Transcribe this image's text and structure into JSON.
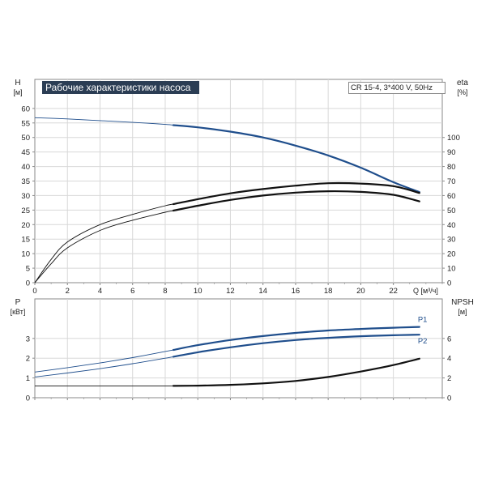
{
  "title": "Рабочие характеристики насоса",
  "model": "CR 15-4, 3*400 V, 50Hz",
  "colors": {
    "blue": "#1f4e8c",
    "black": "#111111",
    "axis": "#8a8a8a",
    "grid": "#d8d8d8",
    "title_bg": "#2b3d54"
  },
  "chart_data": [
    {
      "type": "line",
      "name": "head-efficiency",
      "x_unit_label": "Q [м³/ч]",
      "y_left_label": "H",
      "y_left_unit": "[м]",
      "y_right_label": "eta",
      "y_right_unit": "[%]",
      "xlim": [
        0,
        25
      ],
      "x_ticks": [
        0,
        2,
        4,
        6,
        8,
        10,
        12,
        14,
        16,
        18,
        20,
        22
      ],
      "y_left_lim": [
        0,
        70
      ],
      "y_left_ticks": [
        0,
        5,
        10,
        15,
        20,
        25,
        30,
        35,
        40,
        45,
        50,
        55,
        60
      ],
      "y_right_lim": [
        0,
        140
      ],
      "y_right_ticks": [
        0,
        10,
        20,
        30,
        40,
        50,
        60,
        70,
        80,
        90,
        100
      ],
      "grid": true,
      "series": [
        {
          "key": "H",
          "axis": "left",
          "color": "blue",
          "operating_from": 8.5,
          "x": [
            0,
            2,
            4,
            6,
            8,
            10,
            12,
            14,
            16,
            18,
            20,
            22,
            23.6
          ],
          "y": [
            56.8,
            56.4,
            55.8,
            55.2,
            54.5,
            53.5,
            52.0,
            50.0,
            47.2,
            43.8,
            39.6,
            34.6,
            31.2
          ]
        },
        {
          "key": "eta1",
          "axis": "right",
          "color": "black",
          "operating_from": 8.5,
          "x": [
            0,
            1,
            2,
            4,
            6,
            8,
            10,
            12,
            14,
            16,
            18,
            20,
            22,
            23.6
          ],
          "y": [
            0,
            16,
            28,
            40,
            47,
            53,
            57.5,
            61.5,
            64.5,
            66.8,
            68.5,
            68.2,
            66.5,
            61.8
          ]
        },
        {
          "key": "eta2",
          "axis": "right",
          "color": "black",
          "operating_from": 8.5,
          "x": [
            0,
            1,
            2,
            4,
            6,
            8,
            10,
            12,
            14,
            16,
            18,
            20,
            22,
            23.6
          ],
          "y": [
            0,
            13,
            24,
            36,
            43,
            48.5,
            53,
            57,
            60,
            62,
            63,
            62.5,
            60.5,
            56
          ]
        }
      ]
    },
    {
      "type": "line",
      "name": "power-npsh",
      "y_left_label": "P",
      "y_left_unit": "[кВт]",
      "y_right_label": "NPSH",
      "y_right_unit": "[м]",
      "xlim": [
        0,
        25
      ],
      "x_ticks": [
        0,
        2,
        4,
        6,
        8,
        10,
        12,
        14,
        16,
        18,
        20,
        22
      ],
      "y_left_lim": [
        0,
        5
      ],
      "y_left_ticks": [
        0,
        1,
        2,
        3
      ],
      "y_right_lim": [
        0,
        10
      ],
      "y_right_ticks": [
        0,
        2,
        4,
        6
      ],
      "grid": true,
      "series": [
        {
          "key": "P1",
          "name": "P1",
          "axis": "left",
          "color": "blue",
          "operating_from": 8.5,
          "x": [
            0,
            2,
            4,
            6,
            8,
            10,
            12,
            14,
            16,
            18,
            20,
            22,
            23.6
          ],
          "y": [
            1.3,
            1.52,
            1.76,
            2.03,
            2.34,
            2.66,
            2.92,
            3.12,
            3.28,
            3.4,
            3.48,
            3.54,
            3.58
          ]
        },
        {
          "key": "P2",
          "name": "P2",
          "axis": "left",
          "color": "blue",
          "operating_from": 8.5,
          "x": [
            0,
            2,
            4,
            6,
            8,
            10,
            12,
            14,
            16,
            18,
            20,
            22,
            23.6
          ],
          "y": [
            1.05,
            1.25,
            1.47,
            1.72,
            2.0,
            2.3,
            2.55,
            2.76,
            2.92,
            3.03,
            3.11,
            3.16,
            3.19
          ]
        },
        {
          "key": "NPSH",
          "axis": "right",
          "color": "black",
          "operating_from": 8.5,
          "x": [
            0,
            8.5,
            10,
            12,
            14,
            16,
            18,
            20,
            22,
            23.6
          ],
          "y": [
            1.2,
            1.2,
            1.22,
            1.3,
            1.45,
            1.7,
            2.1,
            2.65,
            3.3,
            3.95
          ]
        }
      ]
    }
  ]
}
